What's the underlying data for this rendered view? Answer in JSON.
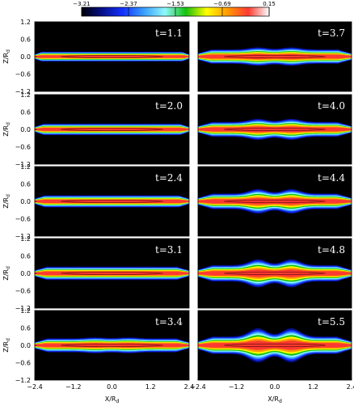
{
  "figure": {
    "colorbar": {
      "ticks": [
        "−3.21",
        "−2.37",
        "−1.53",
        "−0.69",
        "0.15"
      ]
    },
    "panels": {
      "left": [
        "t=1.1",
        "t=2.0",
        "t=2.4",
        "t=3.1",
        "t=3.4"
      ],
      "right": [
        "t=3.7",
        "t=4.0",
        "t=4.4",
        "t=4.8",
        "t=5.5"
      ]
    },
    "y_ticks": [
      "1.2",
      "0.6",
      "0.0",
      "−0.6",
      "−1.2"
    ],
    "x_ticks": [
      "−2.4",
      "−1.2",
      "0.0",
      "1.2",
      "2.4"
    ],
    "y_axis_label": "Z/R",
    "x_axis_label": "X/R",
    "axis_label_subscript": "d"
  },
  "chart_data": {
    "type": "heatmap",
    "colorscale": [
      "#000000",
      "#06108a",
      "#1432ff",
      "#3aa0ff",
      "#8ff7ff",
      "#12c010",
      "#ffff00",
      "#ff9a00",
      "#ff3a30",
      "#ffffff"
    ],
    "colorbar_range": [
      -3.21,
      0.15
    ],
    "x_range": [
      -2.4,
      2.4
    ],
    "y_range": [
      -1.2,
      1.2
    ],
    "panel_times": [
      1.1,
      2.0,
      2.4,
      3.1,
      3.4,
      3.7,
      4.0,
      4.4,
      4.8,
      5.5
    ]
  }
}
